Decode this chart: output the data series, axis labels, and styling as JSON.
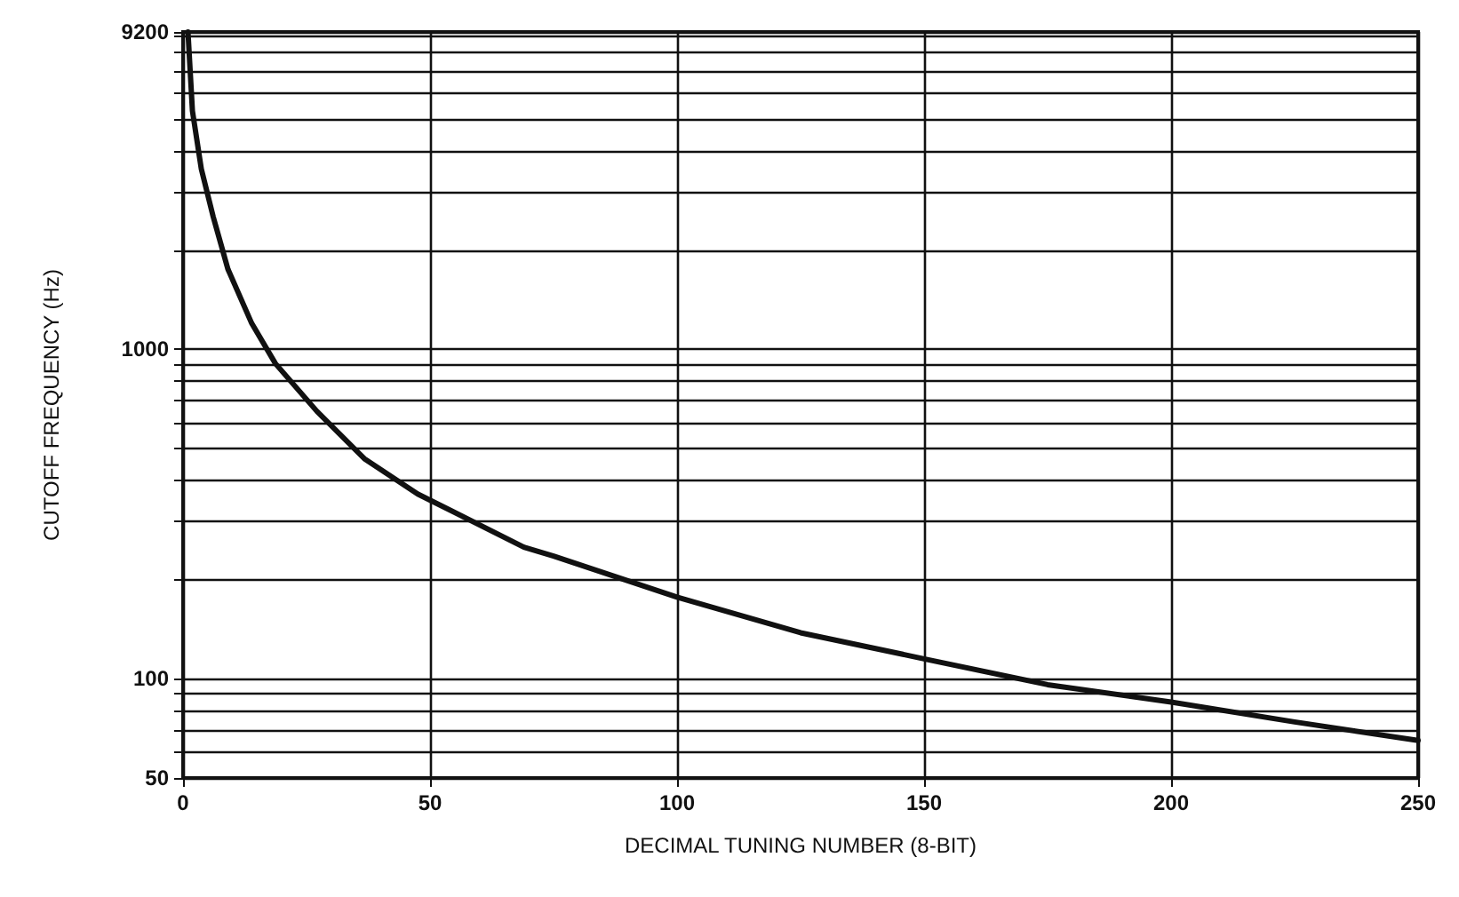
{
  "chart_data": {
    "type": "line",
    "xlabel": "DECIMAL TUNING NUMBER (8-BIT)",
    "ylabel": "CUTOFF FREQUENCY (Hz)",
    "log": "y",
    "grid": true,
    "marker": "none",
    "line_style": "solid",
    "x": [
      1,
      1.9,
      3.7,
      6.1,
      9.1,
      13.9,
      18.7,
      27.1,
      36.7,
      47.5,
      69,
      75,
      100,
      125,
      150,
      175,
      200,
      225,
      250
    ],
    "series": [
      {
        "color": "#111111",
        "values": [
          9200,
          5300,
          3530,
          2530,
          1750,
          1200,
          906,
          649,
          466,
          364,
          251,
          236,
          177,
          138,
          115,
          96,
          85,
          74,
          65
        ]
      }
    ],
    "xlim": [
      0,
      250
    ],
    "xticks": [
      0,
      50,
      100,
      150,
      200,
      250
    ],
    "ylim": [
      50,
      9200
    ],
    "yticks": [
      50,
      {
        "value": 60,
        "label": null
      },
      {
        "value": 70,
        "label": null
      },
      {
        "value": 80,
        "label": null
      },
      {
        "value": 90,
        "label": null
      },
      100,
      {
        "value": 200,
        "label": null
      },
      {
        "value": 300,
        "label": null
      },
      {
        "value": 400,
        "label": null
      },
      {
        "value": 500,
        "label": null
      },
      {
        "value": 600,
        "label": null
      },
      {
        "value": 700,
        "label": null
      },
      {
        "value": 800,
        "label": null
      },
      {
        "value": 900,
        "label": null
      },
      1000,
      {
        "value": 2000,
        "label": null
      },
      {
        "value": 3000,
        "label": null
      },
      {
        "value": 4000,
        "label": null
      },
      {
        "value": 5000,
        "label": null
      },
      {
        "value": 6000,
        "label": null
      },
      {
        "value": 7000,
        "label": null
      },
      {
        "value": 8000,
        "label": null
      },
      {
        "value": 9000,
        "label": null
      },
      9200
    ]
  }
}
